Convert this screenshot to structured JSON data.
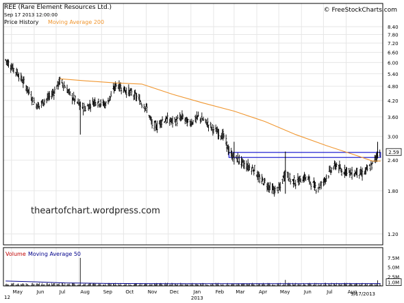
{
  "header": {
    "title": "REE (Rare Element Resources Ltd.)",
    "timestamp": "Sep 17 2013 12:00:00",
    "brand": "© FreeStockCharts.com",
    "legend_price": "Price History",
    "legend_ma200": "Moving Average 200"
  },
  "volume_panel": {
    "legend_volume": "Volume",
    "legend_ma50": "Moving Average 50"
  },
  "watermark": "theartofchart.wordpress.com",
  "footer": {
    "year_label": "2013",
    "date_label": "9/17/2013",
    "left_cut": "12"
  },
  "colors": {
    "price_bars": "#000000",
    "ma200": "#f0962f",
    "ma50": "#00008b",
    "volume_bars": "#222222",
    "channel": "#1a1ad0",
    "grid": "#e6e6e6",
    "axis_box": "#000000",
    "volume_legend": "#c00000"
  },
  "chart_data": [
    {
      "type": "line",
      "subtype": "ohlc",
      "title": "REE (Rare Element Resources Ltd.)",
      "scale": "log",
      "x_label": "",
      "y_label": "",
      "x_ticks": [
        "May",
        "Jun",
        "Jul",
        "Aug",
        "Sep",
        "Oct",
        "Nov",
        "Dec",
        "Jan",
        "Feb",
        "Mar",
        "Apr",
        "May",
        "Jun",
        "Jul",
        "Aug"
      ],
      "y_ticks": [
        "8.40",
        "7.80",
        "7.20",
        "6.60",
        "6.00",
        "5.40",
        "4.80",
        "4.20",
        "3.60",
        "3.00",
        "2.40",
        "1.80",
        "1.20"
      ],
      "last_price_label": "2.59",
      "grid": true,
      "legend_placement": "top-left",
      "series": [
        {
          "name": "Price History",
          "style": "ohlc",
          "points": [
            [
              "2012-04-23",
              6.15
            ],
            [
              "2012-04-27",
              5.95
            ],
            [
              "2012-05-04",
              5.65
            ],
            [
              "2012-05-11",
              5.35
            ],
            [
              "2012-05-18",
              4.95
            ],
            [
              "2012-05-25",
              4.55
            ],
            [
              "2012-06-01",
              4.1
            ],
            [
              "2012-06-08",
              4.0
            ],
            [
              "2012-06-15",
              4.2
            ],
            [
              "2012-06-22",
              4.35
            ],
            [
              "2012-06-29",
              4.6
            ],
            [
              "2012-07-06",
              5.05
            ],
            [
              "2012-07-13",
              4.8
            ],
            [
              "2012-07-20",
              4.45
            ],
            [
              "2012-07-27",
              4.2
            ],
            [
              "2012-08-03",
              4.0
            ],
            [
              "2012-08-10",
              3.9
            ],
            [
              "2012-08-17",
              4.05
            ],
            [
              "2012-08-24",
              4.2
            ],
            [
              "2012-08-31",
              4.1
            ],
            [
              "2012-09-07",
              4.05
            ],
            [
              "2012-09-14",
              4.4
            ],
            [
              "2012-09-21",
              4.9
            ],
            [
              "2012-09-28",
              4.75
            ],
            [
              "2012-10-05",
              4.6
            ],
            [
              "2012-10-12",
              4.5
            ],
            [
              "2012-10-19",
              4.35
            ],
            [
              "2012-10-26",
              4.1
            ],
            [
              "2012-11-02",
              3.9
            ],
            [
              "2012-11-09",
              3.35
            ],
            [
              "2012-11-16",
              3.3
            ],
            [
              "2012-11-23",
              3.5
            ],
            [
              "2012-11-30",
              3.5
            ],
            [
              "2012-12-07",
              3.45
            ],
            [
              "2012-12-14",
              3.5
            ],
            [
              "2012-12-21",
              3.6
            ],
            [
              "2012-12-28",
              3.4
            ],
            [
              "2013-01-04",
              3.45
            ],
            [
              "2013-01-11",
              3.6
            ],
            [
              "2013-01-18",
              3.5
            ],
            [
              "2013-01-25",
              3.35
            ],
            [
              "2013-02-01",
              3.2
            ],
            [
              "2013-02-08",
              3.1
            ],
            [
              "2013-02-15",
              3.0
            ],
            [
              "2013-02-22",
              2.6
            ],
            [
              "2013-03-01",
              2.45
            ],
            [
              "2013-03-08",
              2.4
            ],
            [
              "2013-03-15",
              2.3
            ],
            [
              "2013-03-22",
              2.25
            ],
            [
              "2013-03-29",
              2.2
            ],
            [
              "2013-04-05",
              2.0
            ],
            [
              "2013-04-12",
              1.95
            ],
            [
              "2013-04-19",
              1.85
            ],
            [
              "2013-04-26",
              1.8
            ],
            [
              "2013-05-03",
              1.85
            ],
            [
              "2013-05-10",
              2.15
            ],
            [
              "2013-05-17",
              2.0
            ],
            [
              "2013-05-24",
              1.95
            ],
            [
              "2013-05-31",
              2.0
            ],
            [
              "2013-06-07",
              2.05
            ],
            [
              "2013-06-14",
              1.95
            ],
            [
              "2013-06-21",
              1.85
            ],
            [
              "2013-06-28",
              1.9
            ],
            [
              "2013-07-05",
              2.05
            ],
            [
              "2013-07-12",
              2.2
            ],
            [
              "2013-07-19",
              2.3
            ],
            [
              "2013-07-26",
              2.15
            ],
            [
              "2013-08-02",
              2.2
            ],
            [
              "2013-08-09",
              2.1
            ],
            [
              "2013-08-16",
              2.15
            ],
            [
              "2013-08-23",
              2.1
            ],
            [
              "2013-08-30",
              2.2
            ],
            [
              "2013-09-06",
              2.3
            ],
            [
              "2013-09-13",
              2.55
            ],
            [
              "2013-09-17",
              2.59
            ]
          ]
        },
        {
          "name": "Moving Average 200",
          "style": "line",
          "points": [
            [
              "2012-07-06",
              5.15
            ],
            [
              "2012-08-10",
              5.05
            ],
            [
              "2012-09-21",
              4.95
            ],
            [
              "2012-10-26",
              4.9
            ],
            [
              "2012-12-07",
              4.45
            ],
            [
              "2013-01-18",
              4.1
            ],
            [
              "2013-03-01",
              3.8
            ],
            [
              "2013-04-12",
              3.45
            ],
            [
              "2013-05-24",
              3.05
            ],
            [
              "2013-07-05",
              2.75
            ],
            [
              "2013-08-16",
              2.5
            ],
            [
              "2013-09-06",
              2.38
            ],
            [
              "2013-09-17",
              2.38
            ]
          ]
        }
      ],
      "annotations": [
        {
          "label": "channel",
          "from": "2013-02-22",
          "to": "2013-09-17",
          "upper": 2.58,
          "lower": 2.46
        }
      ],
      "spikes": [
        {
          "date": "2012-08-03",
          "high": 4.15,
          "low": 3.05
        },
        {
          "date": "2013-03-01",
          "high": 2.85,
          "low": 2.45
        },
        {
          "date": "2013-05-10",
          "high": 2.6,
          "low": 1.75
        },
        {
          "date": "2013-09-13",
          "high": 2.85,
          "low": 2.45
        }
      ]
    },
    {
      "type": "bar",
      "title": "Volume",
      "y_ticks": [
        "7.5M",
        "5.0M",
        "2.5M",
        "1.0M"
      ],
      "last_volume_label": "1.0M",
      "series": [
        {
          "name": "Volume",
          "style": "bar",
          "spikes": [
            {
              "date": "2012-08-03",
              "value": 7.5
            },
            {
              "date": "2013-05-10",
              "value": 1.6
            },
            {
              "date": "2013-09-13",
              "value": 1.5
            }
          ],
          "baseline_millions": 0.6
        },
        {
          "name": "Moving Average 50",
          "style": "line",
          "points": [
            [
              "2012-04-23",
              1.3
            ],
            [
              "2012-06-01",
              1.1
            ],
            [
              "2012-07-13",
              0.8
            ],
            [
              "2012-09-07",
              0.65
            ],
            [
              "2012-12-01",
              0.6
            ],
            [
              "2013-03-01",
              0.6
            ],
            [
              "2013-06-01",
              0.58
            ],
            [
              "2013-09-17",
              0.62
            ]
          ]
        }
      ]
    }
  ]
}
